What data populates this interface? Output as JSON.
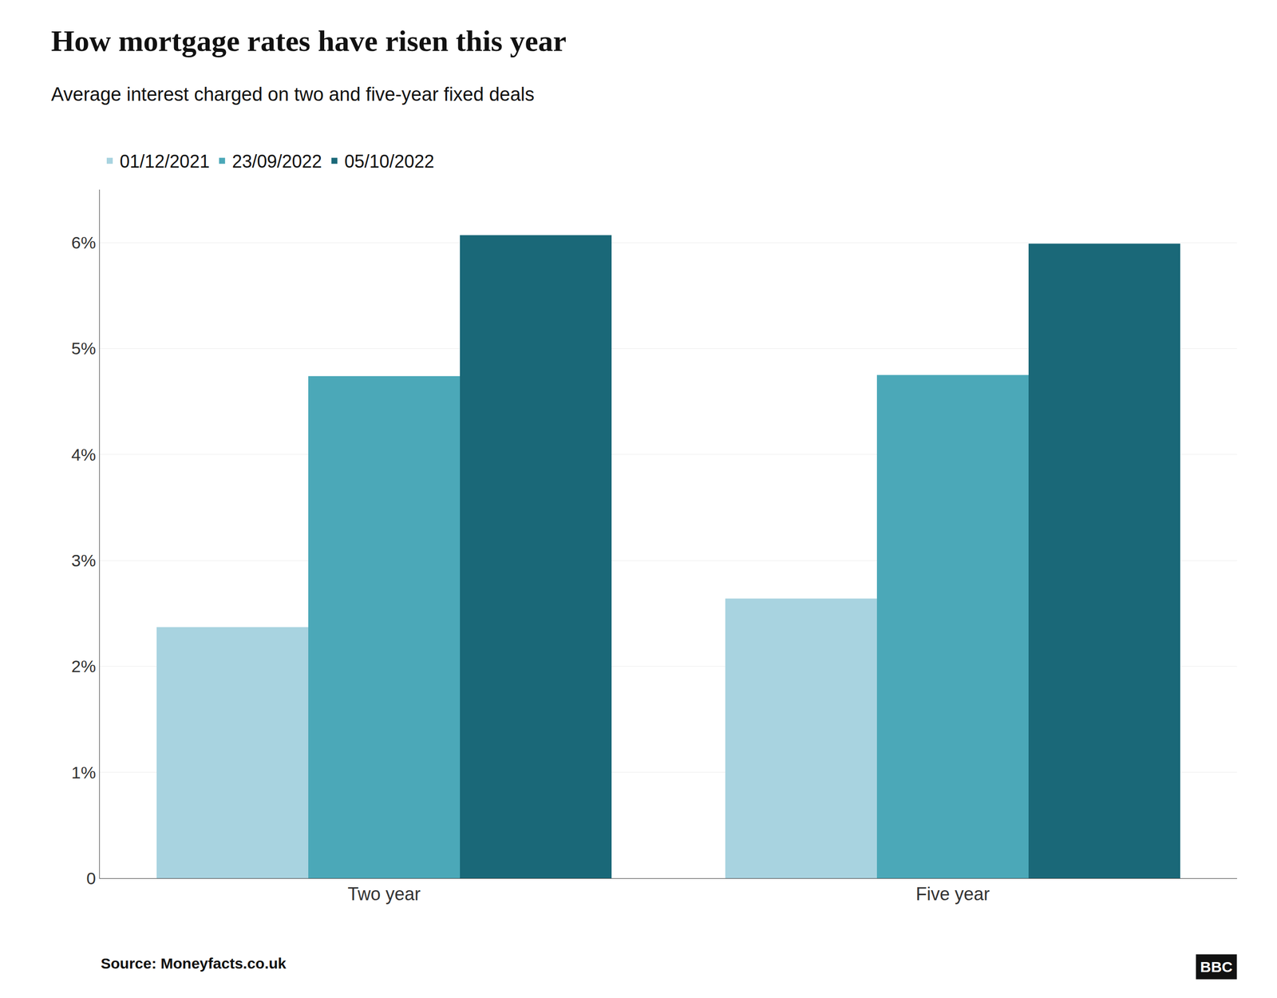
{
  "chart_data": {
    "type": "bar",
    "title": "How mortgage rates have risen this year",
    "subtitle": "Average interest charged on two and five-year fixed deals",
    "source": "Source: Moneyfacts.co.uk",
    "annotations": [
      "BBC"
    ],
    "categories": [
      "Two year",
      "Five year"
    ],
    "series": [
      {
        "name": "01/12/2021",
        "color": "#a8d3e0",
        "values": [
          2.37,
          2.64
        ]
      },
      {
        "name": "23/09/2022",
        "color": "#4ba8b8",
        "values": [
          4.74,
          4.75
        ]
      },
      {
        "name": "05/10/2022",
        "color": "#1a6878",
        "values": [
          6.07,
          5.99
        ]
      }
    ],
    "ylim": [
      0,
      6.5
    ],
    "yticks": [
      0,
      {
        "value": 1,
        "label": "1%"
      },
      {
        "value": 2,
        "label": "2%"
      },
      {
        "value": 3,
        "label": "3%"
      },
      {
        "value": 4,
        "label": "4%"
      },
      {
        "value": 5,
        "label": "5%"
      },
      {
        "value": 6,
        "label": "6%"
      }
    ],
    "grid": true,
    "legend": "top-left"
  }
}
